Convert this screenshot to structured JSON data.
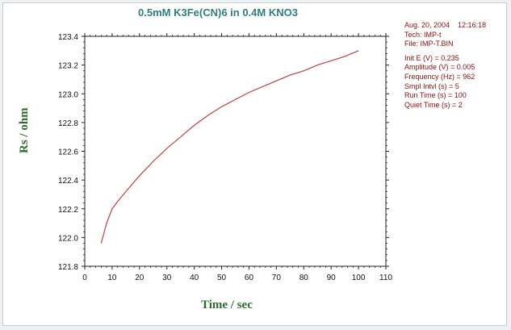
{
  "title": "0.5mM K3Fe(CN)6 in 0.4M KNO3",
  "info": {
    "date_time": "Aug. 20, 2004    12:16:18",
    "tech": "Tech: IMP-t",
    "file": "File: IMP-T.BIN",
    "params": [
      "Init E (V) = 0.235",
      "Amplitude (V) = 0.005",
      "Frequency (Hz) = 962",
      "Smpl Intvl (s) = 5",
      "Run Time (s) = 100",
      "Quiet Time (s) = 2"
    ]
  },
  "chart_data": {
    "type": "line",
    "xlabel": "Time / sec",
    "ylabel": "Rs / ohm",
    "xlim": [
      0,
      110
    ],
    "ylim": [
      121.8,
      123.4
    ],
    "x_ticks": [
      "0",
      "10",
      "20",
      "30",
      "40",
      "50",
      "60",
      "70",
      "80",
      "90",
      "100",
      "110"
    ],
    "y_ticks": [
      "121.8",
      "122.0",
      "122.2",
      "122.4",
      "122.6",
      "122.8",
      "123.0",
      "123.2",
      "123.4"
    ],
    "grid": false,
    "line_color": "#c04040",
    "series": [
      {
        "x": [
          6,
          8,
          10,
          12,
          15,
          20,
          25,
          30,
          35,
          40,
          45,
          50,
          55,
          60,
          65,
          70,
          75,
          80,
          85,
          90,
          95,
          100
        ],
        "values": [
          121.96,
          122.1,
          122.2,
          122.25,
          122.32,
          122.43,
          122.53,
          122.62,
          122.7,
          122.78,
          122.85,
          122.91,
          122.96,
          123.01,
          123.05,
          123.09,
          123.13,
          123.16,
          123.2,
          123.23,
          123.26,
          123.3
        ]
      }
    ]
  }
}
